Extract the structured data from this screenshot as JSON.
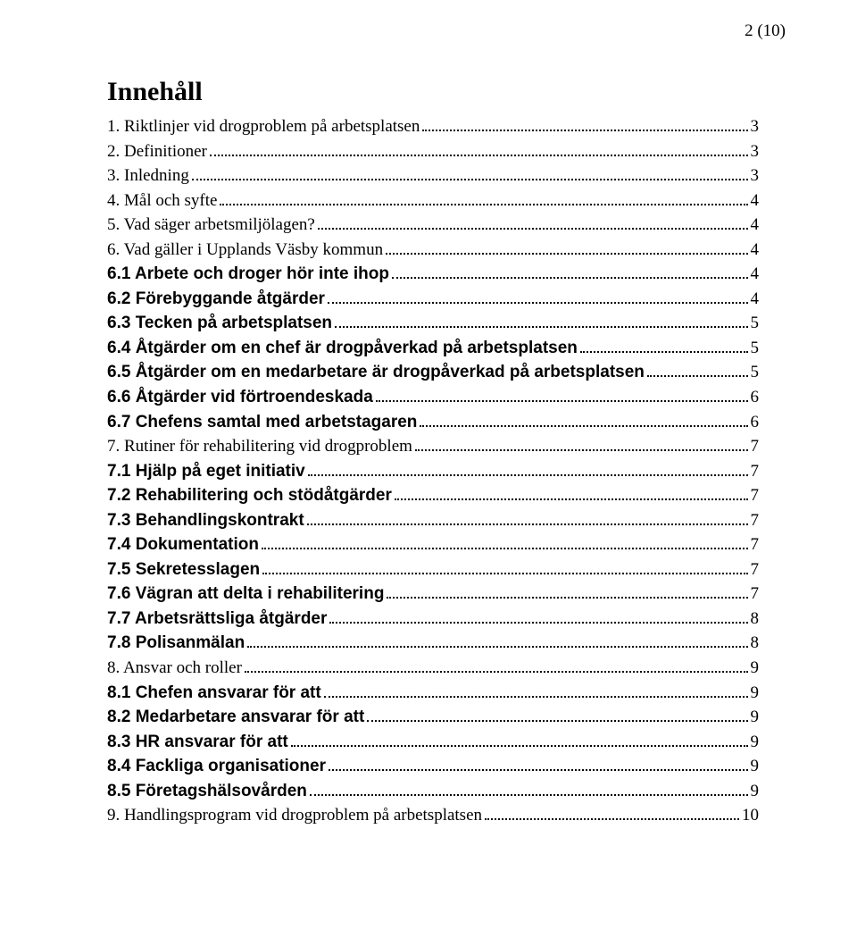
{
  "page_marker": "2 (10)",
  "title": "Innehåll",
  "items": [
    {
      "label": "1. Riktlinjer vid drogproblem på arbetsplatsen",
      "page": "3",
      "bold": false
    },
    {
      "label": "2. Definitioner",
      "page": "3",
      "bold": false
    },
    {
      "label": "3. Inledning",
      "page": "3",
      "bold": false
    },
    {
      "label": "4. Mål och syfte",
      "page": "4",
      "bold": false
    },
    {
      "label": "5. Vad säger arbetsmiljölagen?",
      "page": "4",
      "bold": false
    },
    {
      "label": "6. Vad gäller i Upplands Väsby kommun",
      "page": "4",
      "bold": false
    },
    {
      "label": "6.1 Arbete och droger hör inte ihop",
      "page": "4",
      "bold": true
    },
    {
      "label": "6.2 Förebyggande åtgärder",
      "page": "4",
      "bold": true
    },
    {
      "label": "6.3 Tecken på arbetsplatsen",
      "page": "5",
      "bold": true
    },
    {
      "label": "6.4 Åtgärder om en chef är drogpåverkad på arbetsplatsen",
      "page": "5",
      "bold": true
    },
    {
      "label": "6.5 Åtgärder om en medarbetare är drogpåverkad på arbetsplatsen",
      "page": "5",
      "bold": true
    },
    {
      "label": "6.6 Åtgärder vid förtroendeskada",
      "page": "6",
      "bold": true
    },
    {
      "label": "6.7 Chefens samtal med arbetstagaren",
      "page": "6",
      "bold": true
    },
    {
      "label": "7. Rutiner för rehabilitering vid drogproblem",
      "page": "7",
      "bold": false
    },
    {
      "label": "7.1 Hjälp på eget initiativ",
      "page": "7",
      "bold": true
    },
    {
      "label": "7.2 Rehabilitering och stödåtgärder",
      "page": "7",
      "bold": true
    },
    {
      "label": "7.3 Behandlingskontrakt",
      "page": "7",
      "bold": true
    },
    {
      "label": "7.4 Dokumentation",
      "page": "7",
      "bold": true
    },
    {
      "label": "7.5 Sekretesslagen",
      "page": "7",
      "bold": true
    },
    {
      "label": "7.6 Vägran att delta i rehabilitering",
      "page": "7",
      "bold": true
    },
    {
      "label": "7.7 Arbetsrättsliga åtgärder",
      "page": "8",
      "bold": true
    },
    {
      "label": "7.8 Polisanmälan",
      "page": "8",
      "bold": true
    },
    {
      "label": "8. Ansvar och roller",
      "page": "9",
      "bold": false
    },
    {
      "label": "8.1 Chefen ansvarar för att",
      "page": "9",
      "bold": true
    },
    {
      "label": "8.2 Medarbetare ansvarar för att",
      "page": "9",
      "bold": true
    },
    {
      "label": "8.3 HR ansvarar för att",
      "page": "9",
      "bold": true
    },
    {
      "label": "8.4 Fackliga organisationer",
      "page": "9",
      "bold": true
    },
    {
      "label": "8.5 Företagshälsovården",
      "page": "9",
      "bold": true
    },
    {
      "label": "9. Handlingsprogram vid drogproblem på arbetsplatsen",
      "page": "10",
      "bold": false
    }
  ]
}
